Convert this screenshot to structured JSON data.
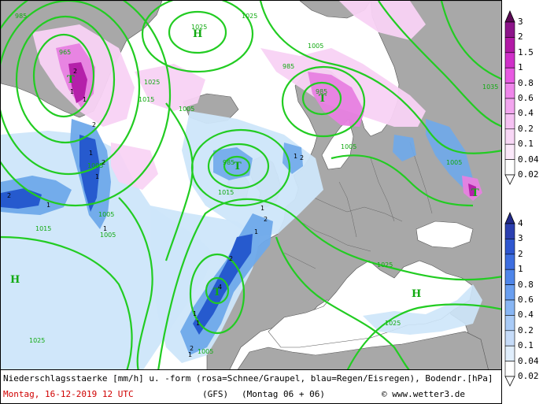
{
  "map": {
    "pressure_centers": [
      {
        "label": "T",
        "kind": "low"
      },
      {
        "label": "T",
        "kind": "low"
      },
      {
        "label": "T",
        "kind": "low"
      },
      {
        "label": "T",
        "kind": "low"
      },
      {
        "label": "T",
        "kind": "low"
      },
      {
        "label": "H",
        "kind": "high"
      },
      {
        "label": "H",
        "kind": "high"
      },
      {
        "label": "H",
        "kind": "high"
      }
    ],
    "isobar_labels": [
      "985",
      "1025",
      "1005",
      "1015",
      "965",
      "985",
      "985",
      "1025",
      "1005",
      "1005",
      "1015",
      "985",
      "1005",
      "1025",
      "1005",
      "1015",
      "1025",
      "1005",
      "1005",
      "1025",
      "1025",
      "1005",
      "1035"
    ],
    "precip_value_labels": [
      "2",
      "1",
      "1",
      "2",
      "1",
      "2",
      "1",
      "2",
      "1",
      "1",
      "2",
      "4",
      "1",
      "1",
      "1",
      "2",
      "1",
      "2",
      "2",
      "1",
      "1"
    ],
    "colors": {
      "land": "#a8a8a8",
      "sea": "#ffffff",
      "isobar": "#22cc22",
      "rain_light": "#cde6fa",
      "rain_mid": "#6ea9ea",
      "rain_heavy": "#2255cc",
      "snow_light": "#f8d2f4",
      "snow_mid": "#e77fe0",
      "snow_heavy": "#b21aa6"
    }
  },
  "legend": {
    "snow": {
      "labels": [
        "3",
        "2",
        "1.5",
        "1",
        "0.8",
        "0.6",
        "0.4",
        "0.2",
        "0.1",
        "0.04",
        "0.02"
      ],
      "colors": [
        "#5c0a55",
        "#8d148a",
        "#b21aa6",
        "#d030c9",
        "#e85be2",
        "#ef86ea",
        "#f3a6ef",
        "#f6c2f3",
        "#f8d7f6",
        "#fbe9fa",
        "#ffffff"
      ]
    },
    "rain": {
      "labels": [
        "4",
        "3",
        "2",
        "1",
        "0.8",
        "0.6",
        "0.4",
        "0.2",
        "0.1",
        "0.04",
        "0.02"
      ],
      "colors": [
        "#222a8a",
        "#2b3fb0",
        "#2f57d0",
        "#3d6ee0",
        "#4f86ea",
        "#6a9ff0",
        "#88b6f4",
        "#a9cbf7",
        "#c6dcf9",
        "#e0eefc",
        "#ffffff"
      ]
    }
  },
  "footer": {
    "line1": "Niederschlagsstaerke [mm/h] u. -form (rosa=Schnee/Graupel, blau=Regen/Eisregen), Bodendr.[hPa]",
    "date": "Montag, 16-12-2019  12 UTC",
    "model": "(GFS)",
    "run": "(Montag 06 + 06)",
    "copyright": "© www.wetter3.de"
  }
}
